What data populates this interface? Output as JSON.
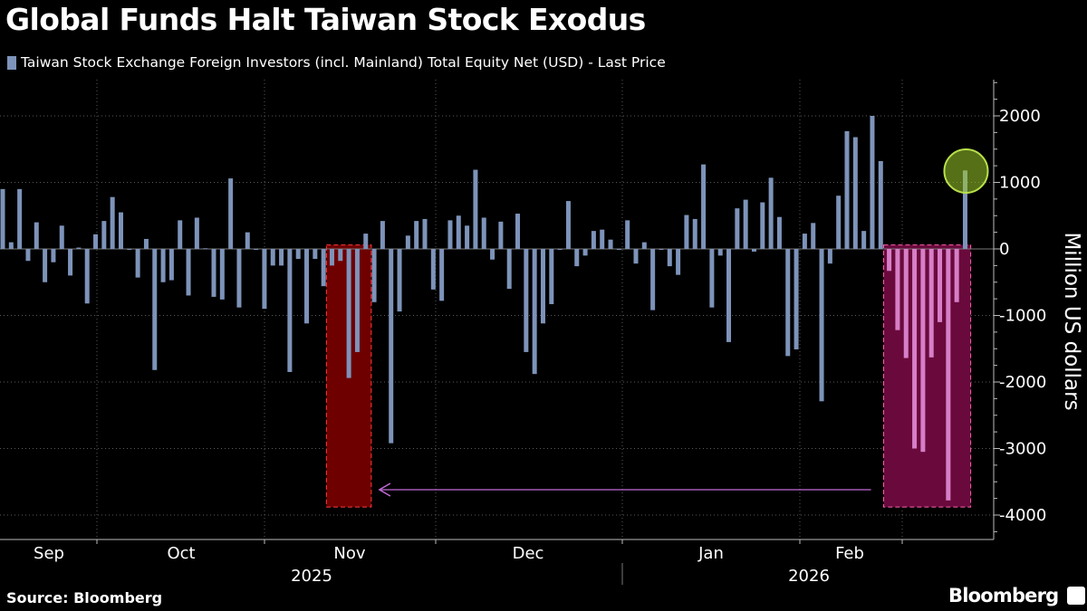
{
  "title": "Global Funds Halt Taiwan Stock Exodus",
  "source": "Source: Bloomberg",
  "brand": "Bloomberg",
  "brand_icon": "bloomberg-logo-icon",
  "colors": {
    "background": "#000000",
    "bar": "#7d93b9",
    "highlight_bar": "#d67fc8",
    "red_box_fill": "#6e0000",
    "red_box_stroke": "#ff3b3b",
    "pink_box_fill": "#6a0a3c",
    "pink_box_stroke": "#ff5fb0",
    "circle_fill": "#9ccc2c",
    "circle_stroke": "#b8e04a",
    "arrow": "#c06bd6",
    "grid": "#5a5a5a"
  },
  "chart_data": {
    "type": "bar",
    "legend": [
      "Taiwan Stock Exchange Foreign Investors (incl. Mainland) Total Equity Net (USD) - Last Price"
    ],
    "ylabel": "Million US dollars",
    "ylim": [
      -4300,
      2550
    ],
    "yticks": [
      2000,
      1000,
      0,
      -1000,
      -2000,
      -3000,
      -4000
    ],
    "month_labels": [
      "Sep",
      "Oct",
      "Nov",
      "Dec",
      "Jan",
      "Feb"
    ],
    "year_labels": [
      "2025",
      "2026"
    ],
    "values": [
      900,
      100,
      900,
      -180,
      400,
      -500,
      -200,
      350,
      -400,
      20,
      -820,
      220,
      420,
      780,
      550,
      0,
      -430,
      150,
      -1820,
      -500,
      -470,
      430,
      -700,
      470,
      10,
      -720,
      -760,
      1060,
      -880,
      250,
      0,
      -900,
      -250,
      -250,
      -1850,
      -150,
      -1120,
      -150,
      -560,
      -250,
      -180,
      -1940,
      -1550,
      230,
      -800,
      420,
      -2920,
      -940,
      200,
      420,
      450,
      -610,
      -780,
      430,
      500,
      350,
      1190,
      470,
      -160,
      410,
      -600,
      530,
      -1550,
      -1880,
      -1120,
      -830,
      0,
      720,
      -260,
      -100,
      270,
      290,
      140,
      0,
      430,
      -220,
      100,
      -920,
      0,
      -260,
      -390,
      510,
      450,
      1270,
      -880,
      -100,
      -1400,
      610,
      740,
      -40,
      700,
      1070,
      480,
      -1610,
      -1510,
      230,
      390,
      -2290,
      -220,
      800,
      1770,
      1680,
      270,
      2000,
      1320,
      -330,
      -1220,
      -1640,
      -3000,
      -3050,
      -1630,
      -1100,
      -3780,
      -800,
      1180
    ],
    "highlight_from_index": 105,
    "annotations": {
      "red_box": {
        "from_index": 39,
        "to_index": 43,
        "low": -3880,
        "high": 60
      },
      "pink_box": {
        "from_index": 105,
        "to_index": 114,
        "low": -3880,
        "high": 60
      },
      "circle_on_index": 114,
      "arrow": "from pink box to red box"
    }
  }
}
